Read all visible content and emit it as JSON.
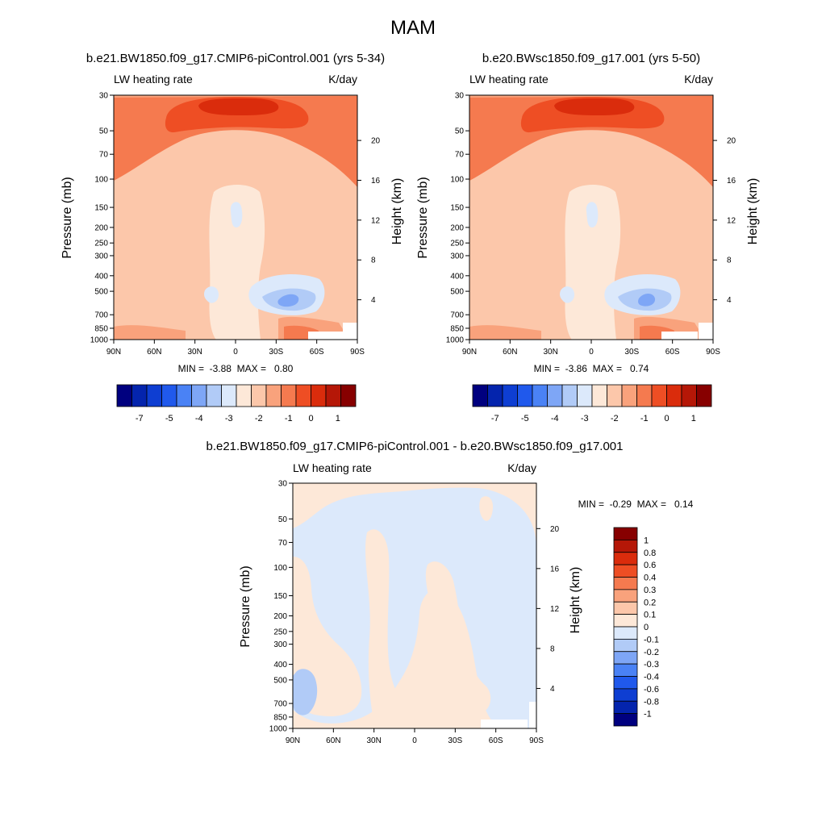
{
  "figure_title": "MAM",
  "chart_data": [
    {
      "type": "heatmap",
      "title": "b.e21.BW1850.f09_g17.CMIP6-piControl.001 (yrs 5-34)",
      "left_label": "LW heating rate",
      "right_label": "K/day",
      "ylabel": "Pressure (mb)",
      "ylabel_right": "Height (km)",
      "x_ticks": [
        "90N",
        "60N",
        "30N",
        "0",
        "30S",
        "60S",
        "90S"
      ],
      "x_values": [
        90,
        60,
        30,
        0,
        -30,
        -60,
        -90
      ],
      "y_ticks": [
        "30",
        "50",
        "70",
        "100",
        "150",
        "200",
        "250",
        "300",
        "400",
        "500",
        "700",
        "850",
        "1000"
      ],
      "y_values": [
        30,
        50,
        70,
        100,
        150,
        200,
        250,
        300,
        400,
        500,
        700,
        850,
        1000
      ],
      "y_right_ticks": [
        "20",
        "16",
        "12",
        "8",
        "4"
      ],
      "y_right_values": [
        20,
        16,
        12,
        8,
        4
      ],
      "min_max_text": "MIN =  -3.88  MAX =   0.80",
      "min": -3.88,
      "max": 0.8,
      "colorbar_labels": [
        "-7",
        "-5",
        "-4",
        "-3",
        "-2",
        "-1",
        "0",
        "1"
      ],
      "levels": [
        -8,
        -7,
        -6,
        -5,
        -4,
        -3.5,
        -3,
        -2.5,
        -2,
        -1.5,
        -1,
        -0.5,
        0,
        0.5,
        1
      ]
    },
    {
      "type": "heatmap",
      "title": "b.e20.BWsc1850.f09_g17.001 (yrs 5-50)",
      "left_label": "LW heating rate",
      "right_label": "K/day",
      "ylabel": "Pressure (mb)",
      "ylabel_right": "Height (km)",
      "x_ticks": [
        "90N",
        "60N",
        "30N",
        "0",
        "30S",
        "60S",
        "90S"
      ],
      "x_values": [
        90,
        60,
        30,
        0,
        -30,
        -60,
        -90
      ],
      "y_ticks": [
        "30",
        "50",
        "70",
        "100",
        "150",
        "200",
        "250",
        "300",
        "400",
        "500",
        "700",
        "850",
        "1000"
      ],
      "y_values": [
        30,
        50,
        70,
        100,
        150,
        200,
        250,
        300,
        400,
        500,
        700,
        850,
        1000
      ],
      "y_right_ticks": [
        "20",
        "16",
        "12",
        "8",
        "4"
      ],
      "y_right_values": [
        20,
        16,
        12,
        8,
        4
      ],
      "min_max_text": "MIN =  -3.86  MAX =   0.74",
      "min": -3.86,
      "max": 0.74,
      "colorbar_labels": [
        "-7",
        "-5",
        "-4",
        "-3",
        "-2",
        "-1",
        "0",
        "1"
      ],
      "levels": [
        -8,
        -7,
        -6,
        -5,
        -4,
        -3.5,
        -3,
        -2.5,
        -2,
        -1.5,
        -1,
        -0.5,
        0,
        0.5,
        1
      ]
    },
    {
      "type": "heatmap",
      "title": "b.e21.BW1850.f09_g17.CMIP6-piControl.001 - b.e20.BWsc1850.f09_g17.001",
      "left_label": "LW heating rate",
      "right_label": "K/day",
      "ylabel": "Pressure (mb)",
      "ylabel_right": "Height (km)",
      "x_ticks": [
        "90N",
        "60N",
        "30N",
        "0",
        "30S",
        "60S",
        "90S"
      ],
      "x_values": [
        90,
        60,
        30,
        0,
        -30,
        -60,
        -90
      ],
      "y_ticks": [
        "30",
        "50",
        "70",
        "100",
        "150",
        "200",
        "250",
        "300",
        "400",
        "500",
        "700",
        "850",
        "1000"
      ],
      "y_values": [
        30,
        50,
        70,
        100,
        150,
        200,
        250,
        300,
        400,
        500,
        700,
        850,
        1000
      ],
      "y_right_ticks": [
        "20",
        "16",
        "12",
        "8",
        "4"
      ],
      "y_right_values": [
        20,
        16,
        12,
        8,
        4
      ],
      "min_max_text": "MIN =  -0.29  MAX =   0.14",
      "min": -0.29,
      "max": 0.14,
      "colorbar_labels": [
        "1",
        "0.8",
        "0.6",
        "0.4",
        "0.3",
        "0.2",
        "0.1",
        "0",
        "-0.1",
        "-0.2",
        "-0.3",
        "-0.4",
        "-0.6",
        "-0.8",
        "-1"
      ],
      "levels": [
        -1,
        -0.8,
        -0.6,
        -0.4,
        -0.3,
        -0.2,
        -0.1,
        0,
        0.1,
        0.2,
        0.3,
        0.4,
        0.6,
        0.8,
        1
      ]
    }
  ],
  "colors": {
    "palette": [
      "#00007f",
      "#0424ad",
      "#0e3ed2",
      "#2059ec",
      "#4a82f5",
      "#7ea6f6",
      "#b1cbf7",
      "#dce9fb",
      "#fde8d8",
      "#fcc7aa",
      "#f9a27c",
      "#f57a4f",
      "#ee4e24",
      "#da2c0c",
      "#b51707",
      "#870000"
    ],
    "background": "#ffffff"
  }
}
